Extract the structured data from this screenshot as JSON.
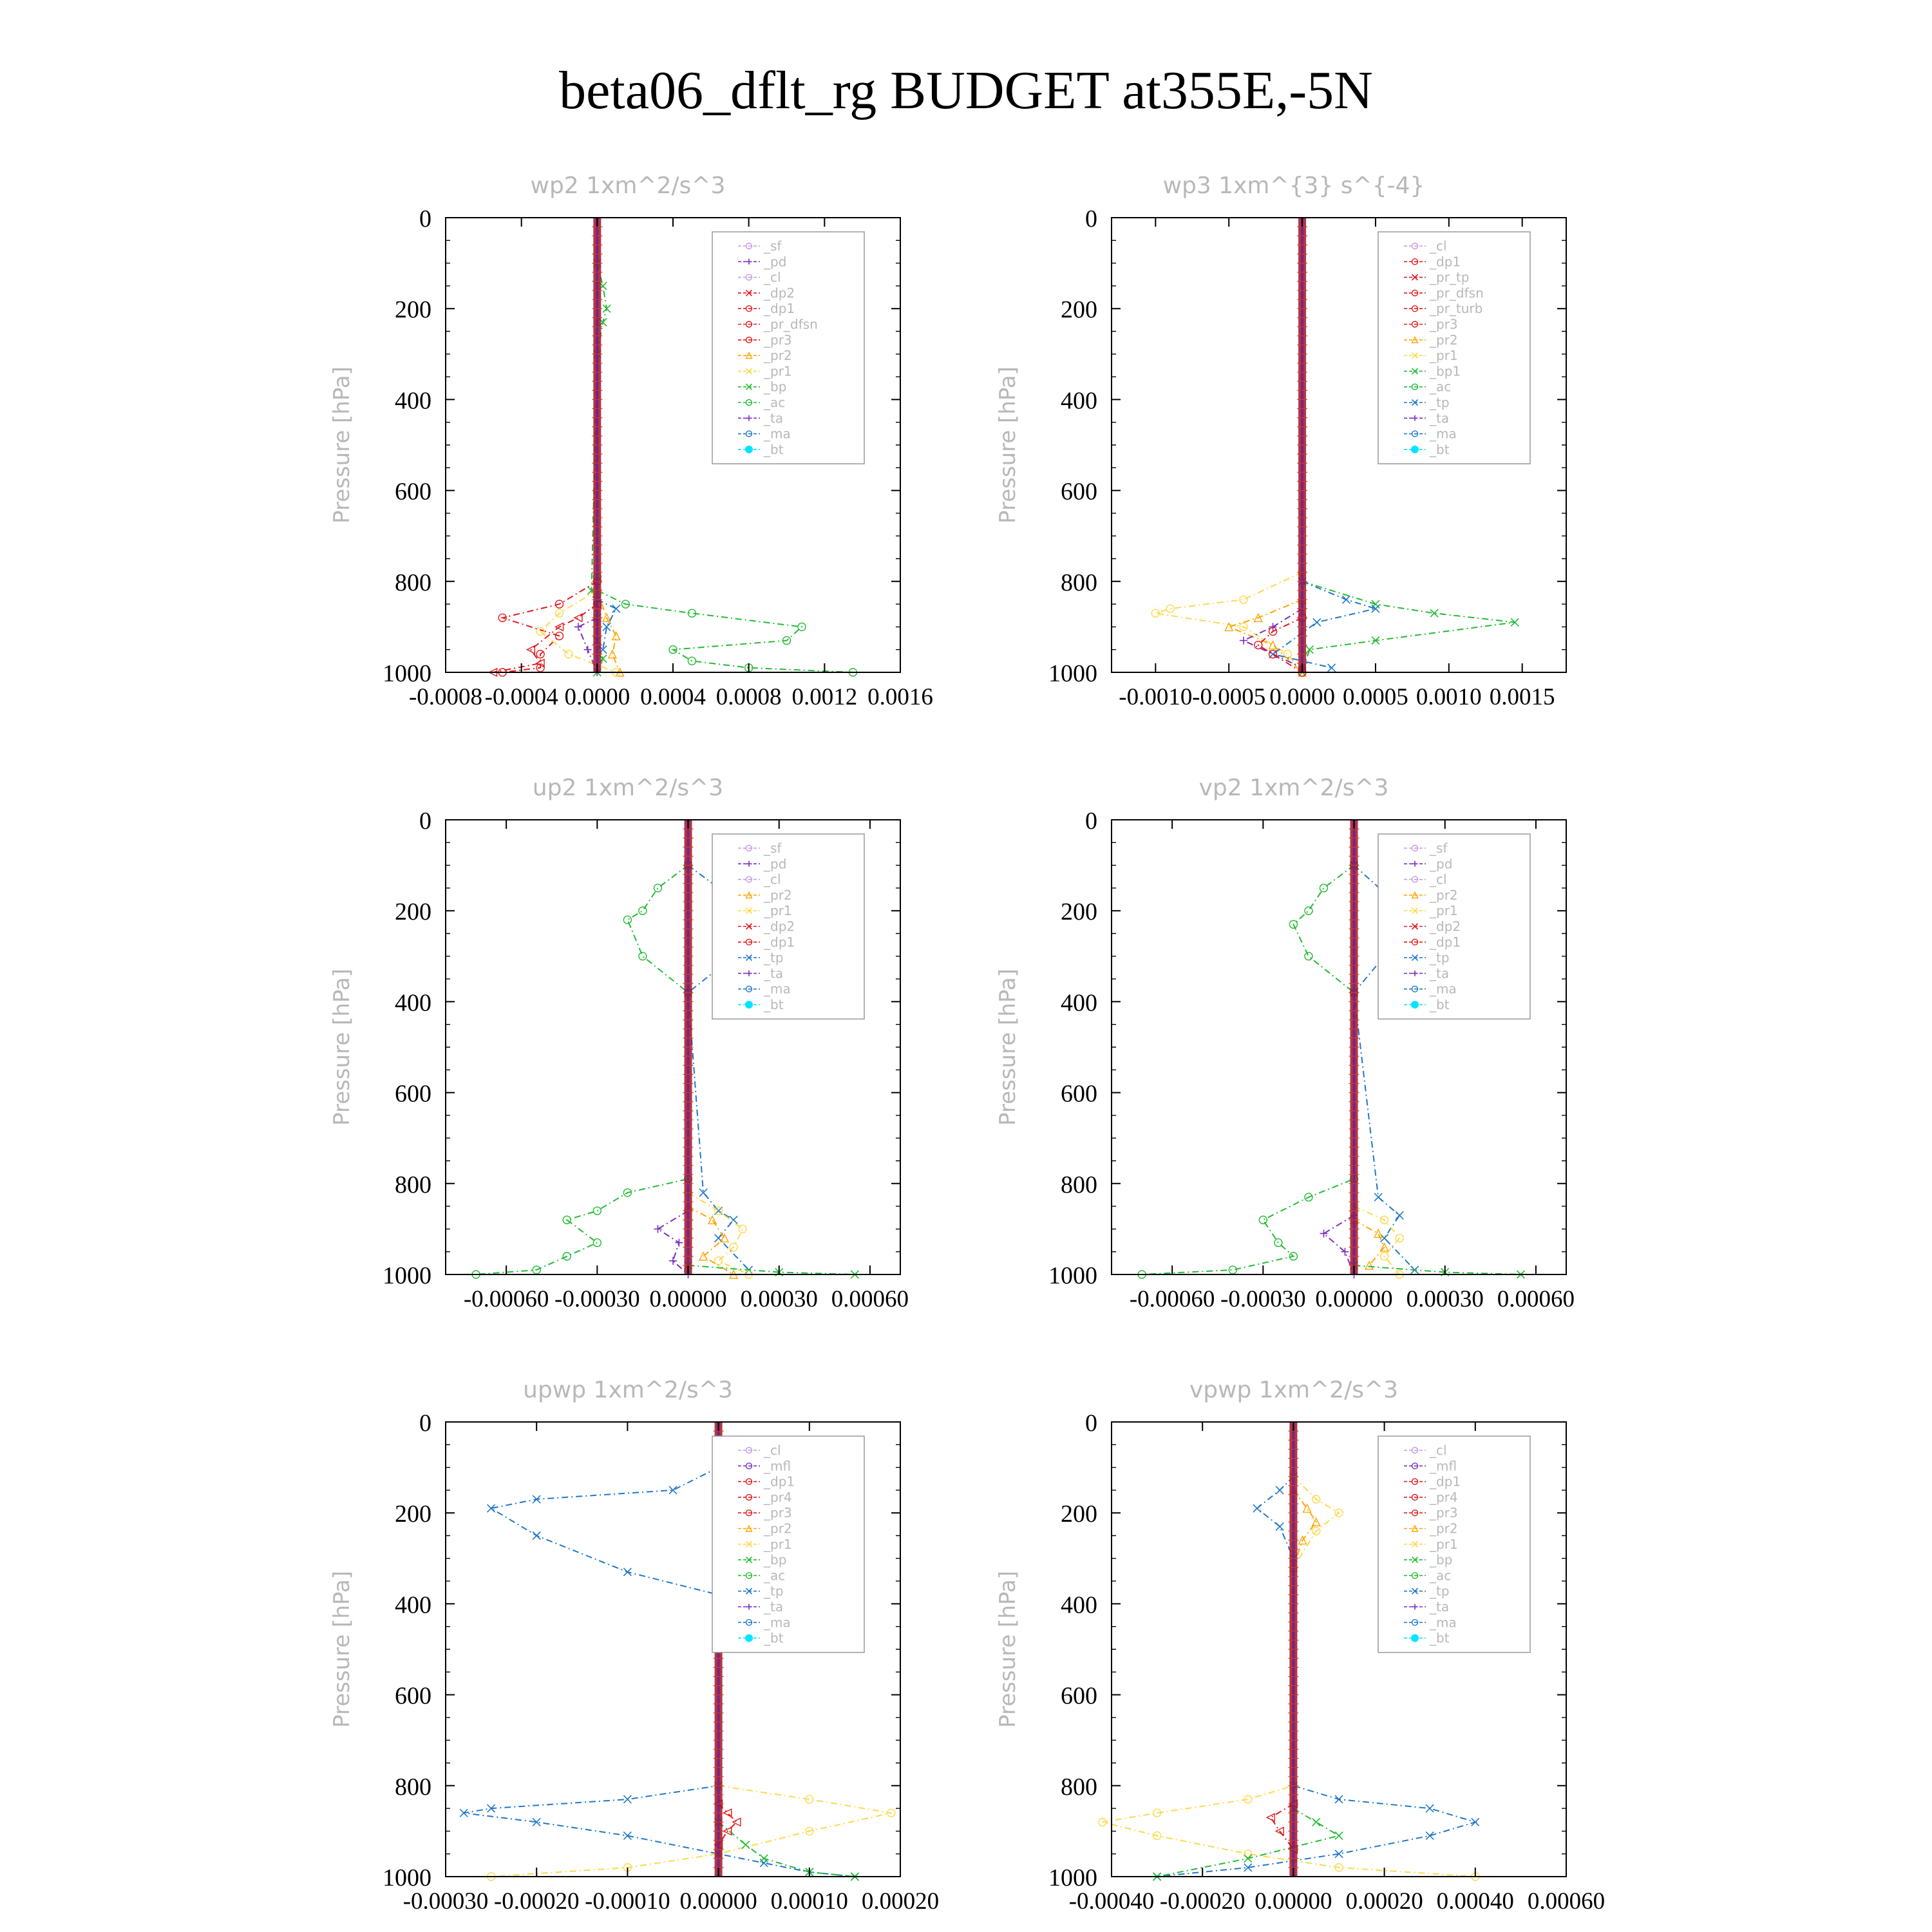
{
  "page": {
    "title": "beta06_dflt_rg  BUDGET at355E,-5N"
  },
  "colors": {
    "frame": "#000000",
    "muted_text": "#b8b8b8",
    "legend_border": "#9a9a9a",
    "bt_fill": "#00e5ff",
    "profile_bar": "#a0142c",
    "profile_bar_alt": "#7a2080",
    "orange": "#ffa500",
    "yellow": "#ffd84a",
    "green": "#22bb33",
    "blue": "#1f78c8",
    "red": "#e31a1c",
    "purple": "#7b2fbf",
    "violet": "#c59ae0",
    "magenta": "#9a2c8a"
  },
  "chart_data": [
    {
      "id": "wp2",
      "type": "line",
      "title": "wp2   1xm^2/s^3",
      "ylabel": "Pressure [hPa]",
      "ylim": [
        1000,
        0
      ],
      "yticks": [
        "0",
        "200",
        "400",
        "600",
        "800",
        "1000"
      ],
      "xlim": [
        -0.0008,
        0.0016
      ],
      "xticks": [
        "-0.0008",
        "-0.0004",
        "0.0000",
        "0.0004",
        "0.0008",
        "0.0012",
        "0.0016"
      ],
      "legend": [
        "_sf",
        "_pd",
        "_cl",
        "_dp2",
        "_dp1",
        "_pr_dfsn",
        "_pr3",
        "_pr2",
        "_pr1",
        "_bp",
        "_ac",
        "_ta",
        "_ma",
        "_bt"
      ],
      "series": [
        {
          "name": "_bp",
          "color": "green",
          "marker": "o",
          "x": [
            0,
            0,
            0.00015,
            0.0005,
            0.00108,
            0.001,
            0.0004,
            0.0005,
            0.0008,
            0.00135
          ],
          "y": [
            790,
            820,
            850,
            870,
            900,
            930,
            950,
            975,
            990,
            1000
          ]
        },
        {
          "name": "_pr1",
          "color": "green",
          "marker": "x",
          "x": [
            0,
            3e-05,
            5e-05,
            3e-05,
            0,
            -3e-05,
            0,
            0,
            3e-05,
            0
          ],
          "y": [
            100,
            150,
            200,
            230,
            300,
            820,
            880,
            930,
            970,
            1000
          ]
        },
        {
          "name": "_dp1",
          "color": "red",
          "marker": "o",
          "x": [
            0,
            -0.0002,
            -0.0005,
            -0.0002,
            -0.0003,
            -0.0003,
            -0.0005
          ],
          "y": [
            800,
            850,
            880,
            920,
            960,
            990,
            1000
          ]
        },
        {
          "name": "_dp2",
          "color": "red",
          "marker": "<",
          "x": [
            0,
            -0.0001,
            -0.0002,
            -0.00035,
            -0.0003,
            -0.00055
          ],
          "y": [
            850,
            880,
            900,
            950,
            980,
            1000
          ]
        },
        {
          "name": "_pr3",
          "color": "orange",
          "marker": "^",
          "x": [
            0,
            5e-05,
            0.0001,
            8e-05,
            0.00012
          ],
          "y": [
            820,
            880,
            920,
            960,
            1000
          ]
        },
        {
          "name": "_pr2",
          "color": "yellow",
          "marker": "o",
          "x": [
            0,
            -0.0002,
            -0.0003,
            -0.00015,
            0.0001
          ],
          "y": [
            820,
            870,
            910,
            960,
            1000
          ]
        },
        {
          "name": "_ac",
          "color": "blue",
          "marker": "x",
          "x": [
            0,
            0.0001,
            5e-05,
            3e-05
          ],
          "y": [
            840,
            860,
            900,
            950
          ]
        },
        {
          "name": "_ta",
          "color": "purple",
          "marker": "+",
          "x": [
            0,
            -0.0001,
            -5e-05,
            0
          ],
          "y": [
            880,
            900,
            950,
            1000
          ]
        }
      ]
    },
    {
      "id": "wp3",
      "type": "line",
      "title": "wp3   1xm^{3} s^{-4}",
      "ylabel": "Pressure [hPa]",
      "ylim": [
        1000,
        0
      ],
      "yticks": [
        "0",
        "200",
        "400",
        "600",
        "800",
        "1000"
      ],
      "xlim": [
        -0.0013,
        0.0018
      ],
      "xticks": [
        "-0.0010",
        "-0.0005",
        "0.0000",
        "0.0005",
        "0.0010",
        "0.0015"
      ],
      "legend": [
        "_cl",
        "_dp1",
        "_pr_tp",
        "_pr_dfsn",
        "_pr_turb",
        "_pr3",
        "_pr2",
        "_pr1",
        "_bp1",
        "_ac",
        "_tp",
        "_ta",
        "_ma",
        "_bt"
      ],
      "series": [
        {
          "name": "_bp1",
          "color": "green",
          "marker": "x",
          "x": [
            0,
            0.0005,
            0.0009,
            0.00145,
            0.0005,
            5e-05,
            0
          ],
          "y": [
            800,
            850,
            870,
            890,
            930,
            950,
            1000
          ]
        },
        {
          "name": "_pr1",
          "color": "yellow",
          "marker": "o",
          "x": [
            0,
            -0.0004,
            -0.0009,
            -0.001,
            -0.0004,
            -0.0001,
            0
          ],
          "y": [
            780,
            840,
            860,
            870,
            900,
            960,
            1000
          ]
        },
        {
          "name": "_pr2",
          "color": "orange",
          "marker": "^",
          "x": [
            0,
            -0.0003,
            -0.0005,
            -0.0002,
            0
          ],
          "y": [
            840,
            880,
            900,
            940,
            1000
          ]
        },
        {
          "name": "_tp",
          "color": "blue",
          "marker": "x",
          "x": [
            0,
            0.0003,
            0.0005,
            0.0001,
            -0.0002,
            0.0002
          ],
          "y": [
            800,
            840,
            860,
            890,
            960,
            990
          ]
        },
        {
          "name": "_ta",
          "color": "purple",
          "marker": "+",
          "x": [
            0,
            -0.0002,
            -0.0004,
            0
          ],
          "y": [
            860,
            900,
            930,
            990
          ]
        },
        {
          "name": "_pr3",
          "color": "red",
          "marker": "o",
          "x": [
            0,
            -0.0002,
            -0.0003,
            -0.0002,
            0
          ],
          "y": [
            880,
            910,
            940,
            960,
            1000
          ]
        }
      ]
    },
    {
      "id": "up2",
      "type": "line",
      "title": "up2   1xm^2/s^3",
      "ylabel": "Pressure [hPa]",
      "ylim": [
        1000,
        0
      ],
      "yticks": [
        "0",
        "200",
        "400",
        "600",
        "800",
        "1000"
      ],
      "xlim": [
        -0.0008,
        0.0007
      ],
      "xticks": [
        "-0.00060",
        "-0.00030",
        "0.00000",
        "0.00030",
        "0.00060"
      ],
      "legend": [
        "_sf",
        "_pd",
        "_cl",
        "_pr2",
        "_pr1",
        "_dp2",
        "_dp1",
        "_tp",
        "_ta",
        "_ma",
        "_bt"
      ],
      "series": [
        {
          "name": "_dp1",
          "color": "green",
          "marker": "o",
          "x": [
            0,
            -0.0001,
            -0.00015,
            -0.0002,
            -0.00015,
            0,
            0,
            -0.0002,
            -0.0003,
            -0.0004,
            -0.0003,
            -0.0004,
            -0.0005,
            -0.0007
          ],
          "y": [
            100,
            150,
            200,
            220,
            300,
            380,
            790,
            820,
            860,
            880,
            930,
            960,
            990,
            1000
          ]
        },
        {
          "name": "_tp",
          "color": "blue",
          "marker": "x",
          "x": [
            0,
            0.0001,
            0.0002,
            0.0003,
            0.00015,
            0,
            5e-05,
            0.0001,
            0.00015,
            0.0001,
            0.0002
          ],
          "y": [
            100,
            150,
            200,
            230,
            300,
            380,
            820,
            860,
            880,
            920,
            990
          ]
        },
        {
          "name": "_pr1",
          "color": "yellow",
          "marker": "o",
          "x": [
            0,
            0.0001,
            0.00018,
            0.00015,
            0.0001,
            0.0002
          ],
          "y": [
            820,
            860,
            900,
            940,
            970,
            1000
          ]
        },
        {
          "name": "_pr2",
          "color": "orange",
          "marker": "^",
          "x": [
            0,
            8e-05,
            0.00012,
            5e-05,
            0.00015
          ],
          "y": [
            850,
            880,
            920,
            960,
            1000
          ]
        },
        {
          "name": "_ta",
          "color": "purple",
          "marker": "+",
          "x": [
            0,
            -0.0001,
            -3e-05,
            -5e-05,
            0
          ],
          "y": [
            860,
            900,
            930,
            970,
            1000
          ]
        },
        {
          "name": "_dp2",
          "color": "green",
          "marker": "x",
          "x": [
            0,
            0.0003,
            0.00055
          ],
          "y": [
            980,
            995,
            1000
          ]
        }
      ]
    },
    {
      "id": "vp2",
      "type": "line",
      "title": "vp2   1xm^2/s^3",
      "ylabel": "Pressure [hPa]",
      "ylim": [
        1000,
        0
      ],
      "yticks": [
        "0",
        "200",
        "400",
        "600",
        "800",
        "1000"
      ],
      "xlim": [
        -0.0008,
        0.0007
      ],
      "xticks": [
        "-0.00060",
        "-0.00030",
        "0.00000",
        "0.00030",
        "0.00060"
      ],
      "legend": [
        "_sf",
        "_pd",
        "_cl",
        "_pr2",
        "_pr1",
        "_dp2",
        "_dp1",
        "_tp",
        "_ta",
        "_ma",
        "_bt"
      ],
      "series": [
        {
          "name": "_dp1",
          "color": "green",
          "marker": "o",
          "x": [
            0,
            -0.0001,
            -0.00015,
            -0.0002,
            -0.00015,
            0,
            0,
            -0.00015,
            -0.0003,
            -0.00025,
            -0.0002,
            -0.0004,
            -0.0007
          ],
          "y": [
            100,
            150,
            200,
            230,
            300,
            380,
            790,
            830,
            880,
            930,
            960,
            990,
            1000
          ]
        },
        {
          "name": "_tp",
          "color": "blue",
          "marker": "x",
          "x": [
            0,
            0.0001,
            0.00015,
            0.0002,
            0.0001,
            0,
            8e-05,
            0.00015,
            0.0001,
            0.0002
          ],
          "y": [
            100,
            160,
            200,
            230,
            300,
            380,
            830,
            870,
            920,
            990
          ]
        },
        {
          "name": "_pr1",
          "color": "yellow",
          "marker": "o",
          "x": [
            0,
            0.0001,
            0.00015,
            0.0001,
            0.00015
          ],
          "y": [
            850,
            880,
            920,
            960,
            1000
          ]
        },
        {
          "name": "_pr2",
          "color": "orange",
          "marker": "^",
          "x": [
            0,
            8e-05,
            0.0001,
            5e-05
          ],
          "y": [
            880,
            910,
            940,
            980
          ]
        },
        {
          "name": "_ta",
          "color": "purple",
          "marker": "+",
          "x": [
            0,
            -0.0001,
            -3e-05,
            0
          ],
          "y": [
            870,
            910,
            950,
            1000
          ]
        },
        {
          "name": "_dp2",
          "color": "green",
          "marker": "x",
          "x": [
            0,
            0.0003,
            0.00055
          ],
          "y": [
            980,
            995,
            1000
          ]
        }
      ]
    },
    {
      "id": "upwp",
      "type": "line",
      "title": "upwp   1xm^2/s^3",
      "ylabel": "Pressure [hPa]",
      "ylim": [
        1000,
        0
      ],
      "yticks": [
        "0",
        "200",
        "400",
        "600",
        "800",
        "1000"
      ],
      "xlim": [
        -0.0003,
        0.0002
      ],
      "xticks": [
        "-0.00030",
        "-0.00020",
        "-0.00010",
        "0.00000",
        "0.00010",
        "0.00020"
      ],
      "legend": [
        "_cl",
        "_mfl",
        "_dp1",
        "_pr4",
        "_pr3",
        "_pr2",
        "_pr1",
        "_bp",
        "_ac",
        "_tp",
        "_ta",
        "_ma",
        "_bt"
      ],
      "series": [
        {
          "name": "_tp",
          "color": "blue",
          "marker": "x",
          "x": [
            0,
            -5e-05,
            -0.0002,
            -0.00025,
            -0.0002,
            -0.0001,
            0,
            0,
            -0.0001,
            -0.00025,
            -0.00028,
            -0.0002,
            -0.0001,
            0,
            5e-05,
            0.0001,
            0.00015
          ],
          "y": [
            100,
            150,
            170,
            190,
            250,
            330,
            380,
            800,
            830,
            850,
            860,
            880,
            910,
            950,
            970,
            990,
            1000
          ]
        },
        {
          "name": "_pr1",
          "color": "yellow",
          "marker": "o",
          "x": [
            0,
            5e-05,
            0.0001,
            8e-05,
            0,
            0,
            0.0001,
            0.00019,
            0.0001,
            0,
            -0.0001,
            -0.00025
          ],
          "y": [
            100,
            150,
            180,
            230,
            340,
            800,
            830,
            860,
            900,
            950,
            980,
            1000
          ]
        },
        {
          "name": "_pr2",
          "color": "orange",
          "marker": "^",
          "x": [
            0,
            3e-05,
            5e-05,
            3e-05,
            0
          ],
          "y": [
            120,
            170,
            200,
            240,
            300
          ]
        },
        {
          "name": "_bp",
          "color": "green",
          "marker": "x",
          "x": [
            0,
            3e-05,
            5e-05,
            0.0001,
            0.00015
          ],
          "y": [
            880,
            930,
            960,
            990,
            1000
          ]
        },
        {
          "name": "_dp1",
          "color": "red",
          "marker": "<",
          "x": [
            0,
            1e-05,
            2e-05,
            1e-05,
            0
          ],
          "y": [
            840,
            860,
            880,
            900,
            930
          ]
        }
      ]
    },
    {
      "id": "vpwp",
      "type": "line",
      "title": "vpwp   1xm^2/s^3",
      "ylabel": "Pressure [hPa]",
      "ylim": [
        1000,
        0
      ],
      "yticks": [
        "0",
        "200",
        "400",
        "600",
        "800",
        "1000"
      ],
      "xlim": [
        -0.0004,
        0.0006
      ],
      "xticks": [
        "-0.00040",
        "-0.00020",
        "0.00000",
        "0.00020",
        "0.00040",
        "0.00060"
      ],
      "legend": [
        "_cl",
        "_mfl",
        "_dp1",
        "_pr4",
        "_pr3",
        "_pr2",
        "_pr1",
        "_bp",
        "_ac",
        "_tp",
        "_ta",
        "_ma",
        "_bt"
      ],
      "series": [
        {
          "name": "_tp",
          "color": "blue",
          "marker": "x",
          "x": [
            0,
            -3e-05,
            -8e-05,
            -3e-05,
            0,
            0,
            0.0001,
            0.0003,
            0.0004,
            0.0003,
            0.0001,
            -0.0001,
            -0.0003
          ],
          "y": [
            120,
            150,
            190,
            230,
            300,
            800,
            830,
            850,
            880,
            910,
            950,
            980,
            1000
          ]
        },
        {
          "name": "_pr1",
          "color": "yellow",
          "marker": "o",
          "x": [
            0,
            5e-05,
            0.0001,
            5e-05,
            0,
            0,
            -0.0001,
            -0.0003,
            -0.00042,
            -0.0003,
            -0.0001,
            0.0001,
            0.0004
          ],
          "y": [
            120,
            170,
            200,
            240,
            320,
            800,
            830,
            860,
            880,
            910,
            950,
            980,
            1000
          ]
        },
        {
          "name": "_pr2",
          "color": "orange",
          "marker": "^",
          "x": [
            0,
            3e-05,
            5e-05,
            2e-05,
            0
          ],
          "y": [
            150,
            190,
            220,
            260,
            320
          ]
        },
        {
          "name": "_bp",
          "color": "green",
          "marker": "x",
          "x": [
            0,
            5e-05,
            0.0001,
            -0.0001,
            -0.0003
          ],
          "y": [
            850,
            880,
            910,
            960,
            1000
          ]
        },
        {
          "name": "_dp1",
          "color": "red",
          "marker": "<",
          "x": [
            0,
            -5e-05,
            -3e-05,
            0
          ],
          "y": [
            840,
            870,
            900,
            940
          ]
        }
      ]
    }
  ]
}
